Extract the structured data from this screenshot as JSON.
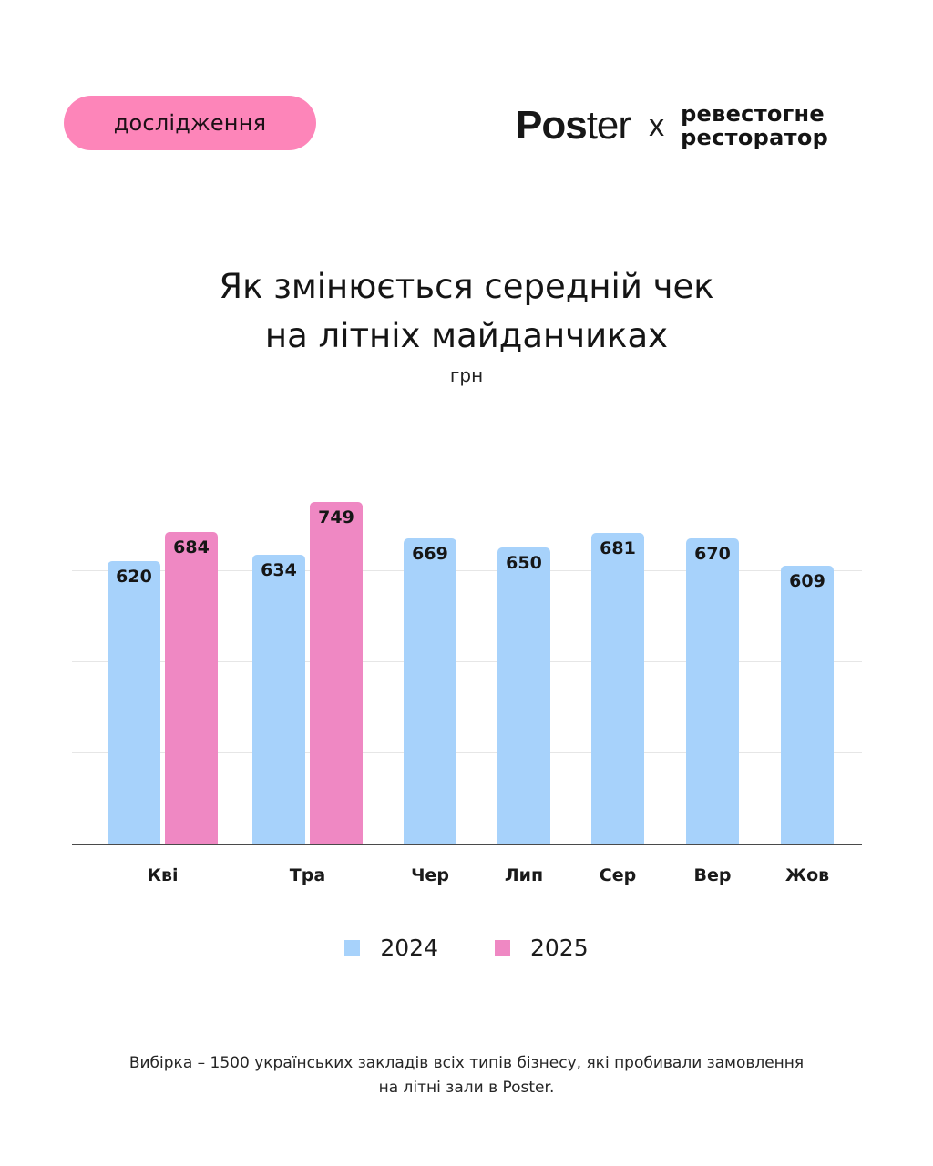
{
  "header": {
    "badge_label": "дослідження",
    "brand_poster_bold": "Pos",
    "brand_poster_light": "ter",
    "brand_separator": "x",
    "brand_partner_line1": "ревестогне",
    "brand_partner_line2": "ресторатор",
    "brand_partner_ampersand": "&"
  },
  "title_line1": "Як змінюється середній чек",
  "title_line2": "на літніх майданчиках",
  "unit": "грн",
  "legend": [
    {
      "label": "2024",
      "color": "#a7d2fb"
    },
    {
      "label": "2025",
      "color": "#ef88c3"
    }
  ],
  "footnote_line1": "Вибірка  – 1500 українських закладів всіх типів бізнесу, які пробивали замовлення",
  "footnote_line2": "на літні зали в Poster.",
  "chart_data": {
    "type": "bar",
    "title": "Як змінюється середній чек на літніх майданчиках",
    "subtitle": "грн",
    "xlabel": "",
    "ylabel": "грн",
    "categories": [
      "Кві",
      "Тра",
      "Чер",
      "Лип",
      "Сер",
      "Вер",
      "Жов"
    ],
    "series": [
      {
        "name": "2024",
        "color": "#a7d2fb",
        "values": [
          620,
          634,
          669,
          650,
          681,
          670,
          609
        ]
      },
      {
        "name": "2025",
        "color": "#ef88c3",
        "values": [
          684,
          749,
          null,
          null,
          null,
          null,
          null
        ]
      }
    ],
    "ylim": [
      0,
      850
    ],
    "gridlines": [
      200,
      400,
      600
    ],
    "grid": true,
    "legend_position": "bottom",
    "data_labels": true
  }
}
